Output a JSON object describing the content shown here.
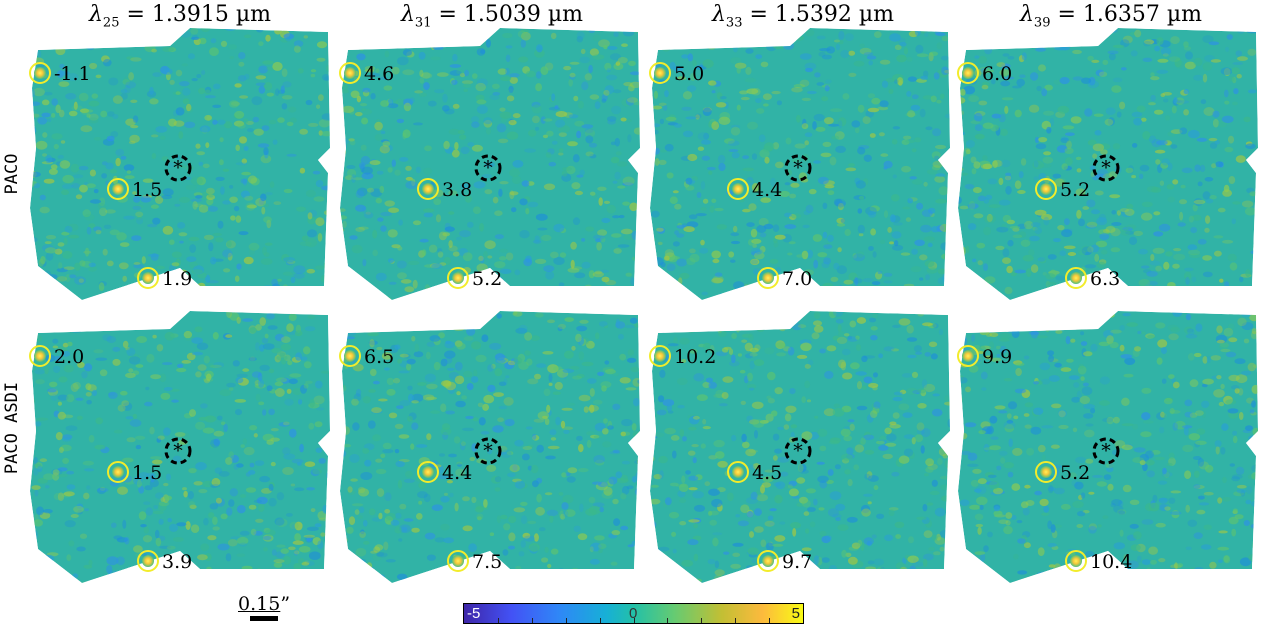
{
  "columns": [
    {
      "sym": "λ",
      "sub": "25",
      "rest": " = 1.3915 µm"
    },
    {
      "sym": "λ",
      "sub": "31",
      "rest": " = 1.5039 µm"
    },
    {
      "sym": "λ",
      "sub": "33",
      "rest": " = 1.5392 µm"
    },
    {
      "sym": "λ",
      "sub": "39",
      "rest": " = 1.6357 µm"
    }
  ],
  "rows": [
    {
      "label": "PACO",
      "values": [
        [
          "-1.1",
          "1.5",
          "1.9"
        ],
        [
          "4.6",
          "3.8",
          "5.2"
        ],
        [
          "5.0",
          "4.4",
          "7.0"
        ],
        [
          "6.0",
          "5.2",
          "6.3"
        ]
      ]
    },
    {
      "label": "PACO ASDI",
      "values": [
        [
          "2.0",
          "1.5",
          "3.9"
        ],
        [
          "6.5",
          "4.4",
          "7.5"
        ],
        [
          "10.2",
          "4.5",
          "9.7"
        ],
        [
          "9.9",
          "5.2",
          "10.4"
        ]
      ]
    }
  ],
  "star_marker": "*",
  "scale_bar": {
    "value": "0.15",
    "unit": "”"
  },
  "colorbar": {
    "min_label": "-5",
    "mid_label": "0",
    "max_label": "5",
    "colors": [
      "#3e26a8",
      "#4352f5",
      "#2f87f7",
      "#17b0d6",
      "#23c0a8",
      "#65cb72",
      "#c2bf34",
      "#fcba3d",
      "#f9fb15"
    ]
  },
  "colors": {
    "map_bg": "#31b3a6",
    "circle": "#f2ec2b"
  }
}
